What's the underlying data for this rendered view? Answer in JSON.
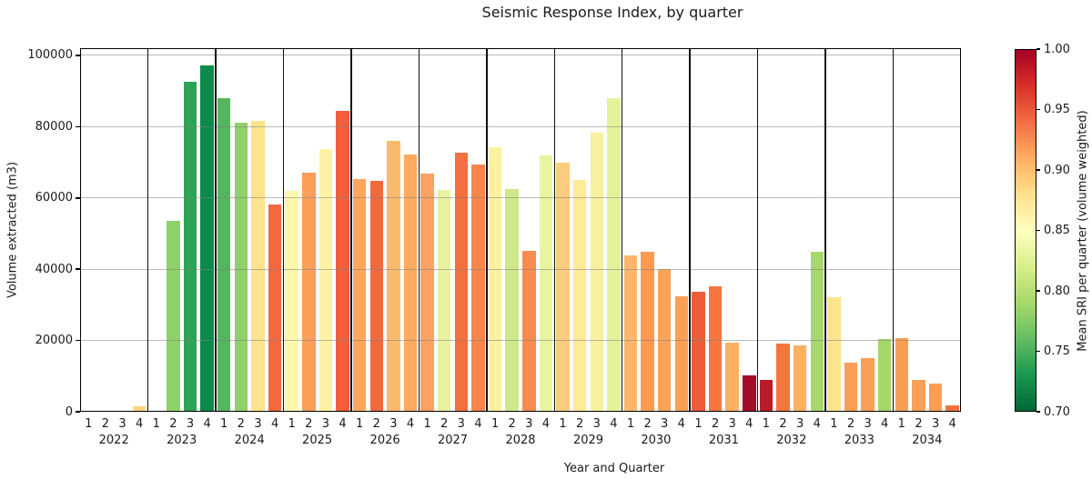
{
  "chart_data": {
    "type": "bar",
    "title": "Seismic Response Index, by quarter",
    "xlabel": "Year and Quarter",
    "ylabel": "Volume extracted (m3)",
    "ylim": [
      0,
      102000
    ],
    "yticks": [
      0,
      20000,
      40000,
      60000,
      80000,
      100000
    ],
    "grid": "horizontal-on",
    "quarter_tick_labels": [
      "1",
      "2",
      "3",
      "4"
    ],
    "colorbar": {
      "label": "Mean SRI per quarter (volume weighted)",
      "range": [
        0.7,
        1.0
      ],
      "ticks": [
        1.0,
        0.95,
        0.9,
        0.85,
        0.8,
        0.75,
        0.7
      ],
      "colormap_name": "RdYlGn reversed",
      "colormap": [
        "#a50026",
        "#d73027",
        "#f46d43",
        "#fdae61",
        "#fee08b",
        "#ffffbf",
        "#d9ef8b",
        "#a6d96a",
        "#66bd63",
        "#1a9850",
        "#006837"
      ]
    },
    "groups": [
      {
        "year": "2022",
        "values": [
          0,
          0,
          0,
          1500
        ],
        "colors": [
          "#ffffff",
          "#ffffff",
          "#ffffff",
          "#fcd67e"
        ],
        "sri_estimate": [
          null,
          null,
          null,
          0.89
        ]
      },
      {
        "year": "2023",
        "values": [
          0,
          53500,
          92600,
          97200
        ],
        "colors": [
          "#ffffff",
          "#8ed168",
          "#2ea355",
          "#0b8a4a"
        ],
        "sri_estimate": [
          null,
          0.78,
          0.74,
          0.72
        ]
      },
      {
        "year": "2024",
        "values": [
          88000,
          81100,
          81600,
          58200
        ],
        "colors": [
          "#57b55f",
          "#90d066",
          "#fde38b",
          "#f4683f"
        ],
        "sri_estimate": [
          0.755,
          0.78,
          0.875,
          0.94
        ]
      },
      {
        "year": "2025",
        "values": [
          62000,
          67000,
          73800,
          84500
        ],
        "colors": [
          "#fdf7ac",
          "#fa9e58",
          "#fdf2a4",
          "#f25e3a"
        ],
        "sri_estimate": [
          0.855,
          0.92,
          0.86,
          0.945
        ]
      },
      {
        "year": "2026",
        "values": [
          65200,
          64900,
          76000,
          72200
        ],
        "colors": [
          "#fba75f",
          "#f2693d",
          "#fcbb6c",
          "#fbaa60"
        ],
        "sri_estimate": [
          0.915,
          0.94,
          0.9,
          0.91
        ]
      },
      {
        "year": "2027",
        "values": [
          66900,
          62200,
          72700,
          69500
        ],
        "colors": [
          "#fba161",
          "#e8f2a1",
          "#f4703f",
          "#f8854c"
        ],
        "sri_estimate": [
          0.915,
          0.835,
          0.94,
          0.93
        ]
      },
      {
        "year": "2028",
        "values": [
          74100,
          62600,
          45200,
          71900
        ],
        "colors": [
          "#fdf0a0",
          "#cfe889",
          "#f68c4e",
          "#e9f4a0"
        ],
        "sri_estimate": [
          0.865,
          0.81,
          0.925,
          0.83
        ]
      },
      {
        "year": "2029",
        "values": [
          70000,
          65100,
          78300,
          87900
        ],
        "colors": [
          "#fbcc7d",
          "#fdeb97",
          "#f7f0a0",
          "#e5f29c"
        ],
        "sri_estimate": [
          0.895,
          0.87,
          0.845,
          0.825
        ]
      },
      {
        "year": "2030",
        "values": [
          43900,
          45000,
          40100,
          32300
        ],
        "colors": [
          "#fbb76b",
          "#f99b55",
          "#f9a35b",
          "#f9a057"
        ],
        "sri_estimate": [
          0.905,
          0.92,
          0.915,
          0.92
        ]
      },
      {
        "year": "2031",
        "values": [
          33700,
          35200,
          19300,
          10300
        ],
        "colors": [
          "#ee5c38",
          "#f5773f",
          "#fbb063",
          "#a30b26"
        ],
        "sri_estimate": [
          0.95,
          0.935,
          0.91,
          1.0
        ]
      },
      {
        "year": "2032",
        "values": [
          9000,
          19100,
          18700,
          44900
        ],
        "colors": [
          "#bb1b28",
          "#f4763f",
          "#fbb064",
          "#a6d96a"
        ],
        "sri_estimate": [
          0.985,
          0.935,
          0.91,
          0.79
        ]
      },
      {
        "year": "2033",
        "values": [
          32200,
          13800,
          15000,
          20500
        ],
        "colors": [
          "#fce48d",
          "#fa9e57",
          "#fa9f58",
          "#a4d669"
        ],
        "sri_estimate": [
          0.875,
          0.92,
          0.92,
          0.79
        ]
      },
      {
        "year": "2034",
        "values": [
          20600,
          8900,
          8000,
          1700
        ],
        "colors": [
          "#f99e55",
          "#f99f58",
          "#f99e56",
          "#f4713e"
        ],
        "sri_estimate": [
          0.92,
          0.92,
          0.92,
          0.94
        ]
      }
    ]
  }
}
